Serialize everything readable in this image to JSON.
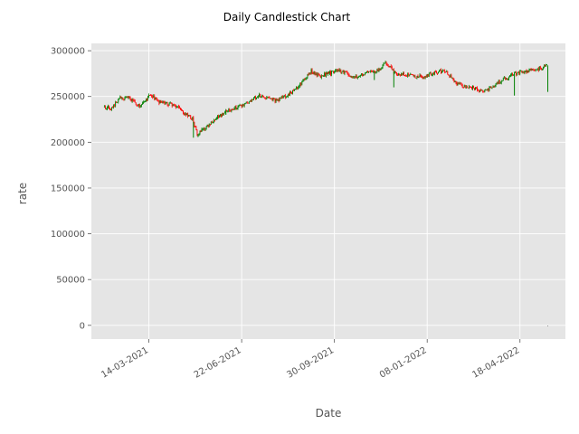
{
  "chart_data": {
    "type": "candlestick",
    "title": "Daily Candlestick Chart",
    "xlabel": "Date",
    "ylabel": "rate",
    "ylim": [
      -15000,
      308000
    ],
    "xlim": [
      "2021-01-11",
      "2022-06-06"
    ],
    "grid": true,
    "yticks": [
      {
        "value": 0,
        "label": "0"
      },
      {
        "value": 50000,
        "label": "50000"
      },
      {
        "value": 100000,
        "label": "100000"
      },
      {
        "value": 150000,
        "label": "150000"
      },
      {
        "value": 200000,
        "label": "200000"
      },
      {
        "value": 250000,
        "label": "250000"
      },
      {
        "value": 300000,
        "label": "300000"
      }
    ],
    "xticks": [
      {
        "date": "2021-03-14",
        "label": "14-03-2021"
      },
      {
        "date": "2021-06-22",
        "label": "22-06-2021"
      },
      {
        "date": "2021-09-30",
        "label": "30-09-2021"
      },
      {
        "date": "2022-01-08",
        "label": "08-01-2022"
      },
      {
        "date": "2022-04-18",
        "label": "18-04-2022"
      }
    ],
    "colors": {
      "up": "#008000",
      "down": "#ff0000",
      "background": "#e5e5e5",
      "grid": "#ffffff"
    },
    "trend": [
      [
        "2021-01-25",
        238000
      ],
      [
        "2021-02-03",
        237000
      ],
      [
        "2021-02-10",
        249000
      ],
      [
        "2021-02-20",
        248000
      ],
      [
        "2021-03-05",
        239000
      ],
      [
        "2021-03-15",
        252000
      ],
      [
        "2021-03-25",
        244000
      ],
      [
        "2021-04-10",
        241000
      ],
      [
        "2021-04-20",
        233000
      ],
      [
        "2021-04-30",
        226000
      ],
      [
        "2021-05-05",
        208000
      ],
      [
        "2021-05-20",
        222000
      ],
      [
        "2021-06-05",
        234000
      ],
      [
        "2021-06-25",
        241000
      ],
      [
        "2021-07-10",
        251000
      ],
      [
        "2021-07-30",
        245000
      ],
      [
        "2021-08-15",
        255000
      ],
      [
        "2021-08-25",
        264000
      ],
      [
        "2021-09-05",
        278000
      ],
      [
        "2021-09-15",
        272000
      ],
      [
        "2021-10-05",
        279000
      ],
      [
        "2021-10-20",
        271000
      ],
      [
        "2021-11-05",
        276000
      ],
      [
        "2021-11-15",
        278000
      ],
      [
        "2021-11-25",
        287000
      ],
      [
        "2021-12-05",
        275000
      ],
      [
        "2021-12-20",
        273000
      ],
      [
        "2022-01-05",
        271000
      ],
      [
        "2022-01-15",
        276000
      ],
      [
        "2022-01-27",
        278000
      ],
      [
        "2022-02-10",
        263000
      ],
      [
        "2022-02-25",
        260000
      ],
      [
        "2022-03-10",
        255000
      ],
      [
        "2022-03-20",
        262000
      ],
      [
        "2022-03-30",
        268000
      ],
      [
        "2022-04-15",
        276000
      ],
      [
        "2022-05-05",
        279000
      ],
      [
        "2022-05-17",
        284000
      ]
    ],
    "outliers": [
      {
        "date": "2021-05-01",
        "value": 205000
      },
      {
        "date": "2021-06-05",
        "value": 230000
      },
      {
        "date": "2021-11-12",
        "value": 268000
      },
      {
        "date": "2021-12-03",
        "value": 260000
      },
      {
        "date": "2022-04-12",
        "value": 251000
      },
      {
        "date": "2022-05-18",
        "value": 255000
      },
      {
        "date": "2022-05-18",
        "value": -1000
      }
    ]
  }
}
